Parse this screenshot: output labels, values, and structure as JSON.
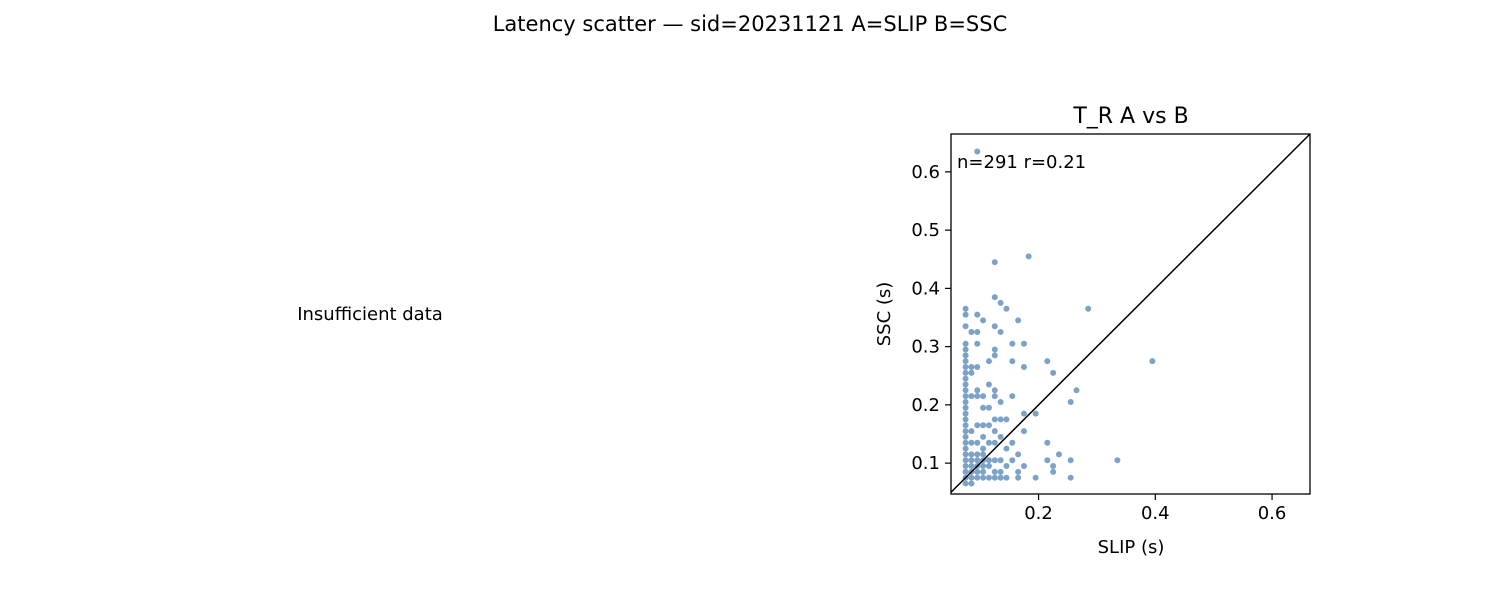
{
  "figure": {
    "suptitle": "Latency scatter — sid=20231121  A=SLIP  B=SSC",
    "left_panel_message": "Insufficient data"
  },
  "chart_data": {
    "type": "scatter",
    "title": "T_R  A vs B",
    "xlabel": "SLIP (s)",
    "ylabel": "SSC (s)",
    "xlim": [
      0.05,
      0.665
    ],
    "ylim": [
      0.047,
      0.665
    ],
    "xticks": [
      0.2,
      0.4,
      0.6
    ],
    "xtick_labels": [
      "0.2",
      "0.4",
      "0.6"
    ],
    "yticks": [
      0.1,
      0.2,
      0.3,
      0.4,
      0.5,
      0.6
    ],
    "ytick_labels": [
      "0.1",
      "0.2",
      "0.3",
      "0.4",
      "0.5",
      "0.6"
    ],
    "grid": false,
    "identity_line": true,
    "annotation": "n=291   r=0.21",
    "point_color": "#4a7fb1",
    "series": [
      {
        "name": "T_R",
        "points": [
          [
            0.095,
            0.635
          ],
          [
            0.183,
            0.455
          ],
          [
            0.125,
            0.445
          ],
          [
            0.125,
            0.385
          ],
          [
            0.135,
            0.375
          ],
          [
            0.145,
            0.365
          ],
          [
            0.285,
            0.365
          ],
          [
            0.075,
            0.365
          ],
          [
            0.075,
            0.355
          ],
          [
            0.095,
            0.355
          ],
          [
            0.105,
            0.345
          ],
          [
            0.165,
            0.345
          ],
          [
            0.075,
            0.335
          ],
          [
            0.125,
            0.335
          ],
          [
            0.085,
            0.325
          ],
          [
            0.095,
            0.325
          ],
          [
            0.135,
            0.325
          ],
          [
            0.155,
            0.305
          ],
          [
            0.175,
            0.305
          ],
          [
            0.075,
            0.305
          ],
          [
            0.075,
            0.295
          ],
          [
            0.095,
            0.305
          ],
          [
            0.125,
            0.295
          ],
          [
            0.075,
            0.285
          ],
          [
            0.115,
            0.275
          ],
          [
            0.155,
            0.275
          ],
          [
            0.215,
            0.275
          ],
          [
            0.395,
            0.275
          ],
          [
            0.075,
            0.275
          ],
          [
            0.125,
            0.285
          ],
          [
            0.075,
            0.265
          ],
          [
            0.085,
            0.265
          ],
          [
            0.095,
            0.265
          ],
          [
            0.175,
            0.265
          ],
          [
            0.075,
            0.255
          ],
          [
            0.225,
            0.255
          ],
          [
            0.085,
            0.255
          ],
          [
            0.075,
            0.245
          ],
          [
            0.075,
            0.235
          ],
          [
            0.115,
            0.235
          ],
          [
            0.095,
            0.225
          ],
          [
            0.125,
            0.225
          ],
          [
            0.265,
            0.225
          ],
          [
            0.075,
            0.225
          ],
          [
            0.075,
            0.215
          ],
          [
            0.085,
            0.215
          ],
          [
            0.095,
            0.215
          ],
          [
            0.105,
            0.215
          ],
          [
            0.155,
            0.215
          ],
          [
            0.125,
            0.215
          ],
          [
            0.075,
            0.205
          ],
          [
            0.135,
            0.205
          ],
          [
            0.255,
            0.205
          ],
          [
            0.075,
            0.195
          ],
          [
            0.105,
            0.195
          ],
          [
            0.115,
            0.195
          ],
          [
            0.195,
            0.185
          ],
          [
            0.175,
            0.185
          ],
          [
            0.075,
            0.185
          ],
          [
            0.075,
            0.175
          ],
          [
            0.125,
            0.175
          ],
          [
            0.135,
            0.175
          ],
          [
            0.145,
            0.175
          ],
          [
            0.075,
            0.165
          ],
          [
            0.095,
            0.165
          ],
          [
            0.105,
            0.165
          ],
          [
            0.115,
            0.165
          ],
          [
            0.075,
            0.155
          ],
          [
            0.085,
            0.155
          ],
          [
            0.125,
            0.155
          ],
          [
            0.175,
            0.155
          ],
          [
            0.075,
            0.145
          ],
          [
            0.105,
            0.145
          ],
          [
            0.135,
            0.145
          ],
          [
            0.085,
            0.135
          ],
          [
            0.095,
            0.135
          ],
          [
            0.115,
            0.135
          ],
          [
            0.125,
            0.135
          ],
          [
            0.155,
            0.135
          ],
          [
            0.215,
            0.135
          ],
          [
            0.075,
            0.135
          ],
          [
            0.075,
            0.125
          ],
          [
            0.105,
            0.125
          ],
          [
            0.145,
            0.125
          ],
          [
            0.075,
            0.115
          ],
          [
            0.085,
            0.115
          ],
          [
            0.095,
            0.115
          ],
          [
            0.105,
            0.115
          ],
          [
            0.165,
            0.115
          ],
          [
            0.235,
            0.115
          ],
          [
            0.075,
            0.105
          ],
          [
            0.085,
            0.105
          ],
          [
            0.095,
            0.105
          ],
          [
            0.105,
            0.105
          ],
          [
            0.115,
            0.105
          ],
          [
            0.125,
            0.105
          ],
          [
            0.135,
            0.105
          ],
          [
            0.155,
            0.105
          ],
          [
            0.215,
            0.105
          ],
          [
            0.255,
            0.105
          ],
          [
            0.335,
            0.105
          ],
          [
            0.075,
            0.095
          ],
          [
            0.085,
            0.095
          ],
          [
            0.095,
            0.095
          ],
          [
            0.105,
            0.095
          ],
          [
            0.115,
            0.095
          ],
          [
            0.145,
            0.095
          ],
          [
            0.175,
            0.095
          ],
          [
            0.225,
            0.095
          ],
          [
            0.075,
            0.085
          ],
          [
            0.085,
            0.085
          ],
          [
            0.095,
            0.085
          ],
          [
            0.105,
            0.085
          ],
          [
            0.125,
            0.085
          ],
          [
            0.135,
            0.085
          ],
          [
            0.165,
            0.085
          ],
          [
            0.225,
            0.085
          ],
          [
            0.075,
            0.075
          ],
          [
            0.085,
            0.075
          ],
          [
            0.095,
            0.075
          ],
          [
            0.105,
            0.075
          ],
          [
            0.115,
            0.075
          ],
          [
            0.125,
            0.075
          ],
          [
            0.135,
            0.075
          ],
          [
            0.145,
            0.075
          ],
          [
            0.165,
            0.075
          ],
          [
            0.195,
            0.075
          ],
          [
            0.255,
            0.075
          ],
          [
            0.075,
            0.065
          ],
          [
            0.085,
            0.065
          ]
        ]
      }
    ]
  }
}
